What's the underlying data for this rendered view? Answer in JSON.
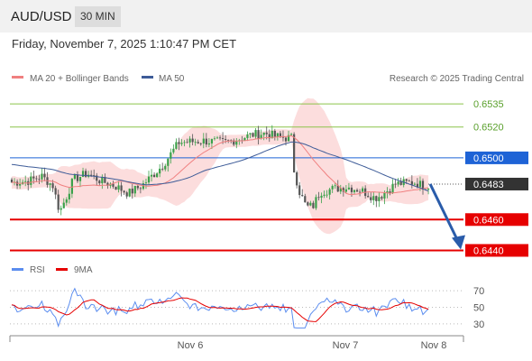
{
  "header": {
    "symbol": "AUD/USD",
    "timeframe": "30 MIN",
    "timestamp": "Friday, November 7, 2025 1:10:47 PM CET"
  },
  "legend": {
    "bollinger": {
      "label": "MA 20 + Bollinger Bands",
      "color": "#f08080"
    },
    "ma50": {
      "label": "MA 50",
      "color": "#3e5c98"
    },
    "credit": "Research © 2025 Trading Central"
  },
  "chart_data": [
    {
      "type": "candlestick",
      "ylim": [
        0.6435,
        0.6545
      ],
      "levels": [
        {
          "value": 0.6535,
          "label": "0.6535",
          "kind": "target",
          "color": "#8bc34a"
        },
        {
          "value": 0.652,
          "label": "0.6520",
          "kind": "target",
          "color": "#8bc34a"
        },
        {
          "value": 0.65,
          "label": "0.6500",
          "kind": "pivot",
          "color": "#1e63d6"
        },
        {
          "value": 0.6483,
          "label": "0.6483",
          "kind": "last",
          "color": "#333333"
        },
        {
          "value": 0.646,
          "label": "0.6460",
          "kind": "support",
          "color": "#e60000"
        },
        {
          "value": 0.644,
          "label": "0.6440",
          "kind": "support",
          "color": "#e60000"
        }
      ],
      "x_ticks": [
        "Nov 6",
        "Nov 7",
        "Nov 8"
      ],
      "forecast": {
        "from": 0.6483,
        "to": 0.644,
        "color": "#2a5caa"
      }
    },
    {
      "type": "line",
      "legend": [
        {
          "label": "RSI",
          "color": "#5b8def"
        },
        {
          "label": "9MA",
          "color": "#e60000"
        }
      ],
      "ylim": [
        20,
        80
      ],
      "y_ticks": [
        "70",
        "50",
        "30"
      ],
      "y_tick_values": [
        70,
        50,
        30
      ]
    }
  ]
}
